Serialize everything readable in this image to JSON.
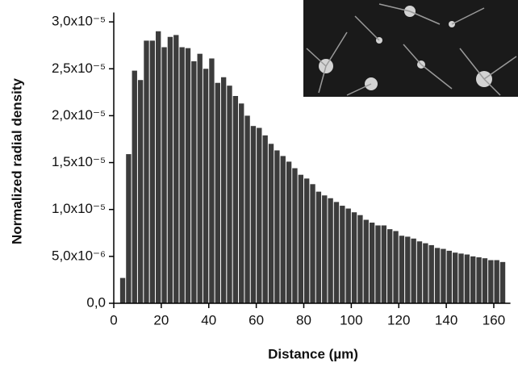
{
  "chart_data": {
    "type": "histogram",
    "xlabel": "Distance (µm)",
    "ylabel": "Normalized radial density",
    "color": "#3c3c3c",
    "bins": [
      2.5,
      5,
      7.5,
      10,
      12.5,
      15,
      17.5,
      20,
      22.5,
      25,
      27.5,
      30,
      32.5,
      35,
      37.5,
      40,
      42.5,
      45,
      47.5,
      50,
      52.5,
      55,
      57.5,
      60,
      62.5,
      65,
      67.5,
      70,
      72.5,
      75,
      77.5,
      80,
      82.5,
      85,
      87.5,
      90,
      92.5,
      95,
      97.5,
      100,
      102.5,
      105,
      107.5,
      110,
      112.5,
      115,
      117.5,
      120,
      122.5,
      125,
      127.5,
      130,
      132.5,
      135,
      137.5,
      140,
      142.5,
      145,
      147.5,
      150,
      152.5,
      155,
      157.5,
      160,
      162.5,
      165
    ],
    "values": [
      2.7e-06,
      1.59e-05,
      2.48e-05,
      2.38e-05,
      2.8e-05,
      2.8e-05,
      2.9e-05,
      2.73e-05,
      2.84e-05,
      2.86e-05,
      2.73e-05,
      2.72e-05,
      2.58e-05,
      2.66e-05,
      2.5e-05,
      2.61e-05,
      2.35e-05,
      2.41e-05,
      2.32e-05,
      2.21e-05,
      2.13e-05,
      2e-05,
      1.89e-05,
      1.87e-05,
      1.79e-05,
      1.7e-05,
      1.63e-05,
      1.57e-05,
      1.51e-05,
      1.44e-05,
      1.37e-05,
      1.33e-05,
      1.27e-05,
      1.19e-05,
      1.15e-05,
      1.12e-05,
      1.08e-05,
      1.04e-05,
      1.01e-05,
      9.7e-06,
      9.4e-06,
      8.9e-06,
      8.6e-06,
      8.3e-06,
      8.3e-06,
      7.9e-06,
      7.7e-06,
      7.2e-06,
      7.1e-06,
      6.9e-06,
      6.6e-06,
      6.4e-06,
      6.2e-06,
      5.9e-06,
      5.8e-06,
      5.6e-06,
      5.4e-06,
      5.3e-06,
      5.2e-06,
      5e-06,
      4.9e-06,
      4.8e-06,
      4.6e-06,
      4.6e-06,
      4.4e-06
    ],
    "xlim": [
      0,
      167
    ],
    "xticks": [
      0,
      20,
      40,
      60,
      80,
      100,
      120,
      140,
      160
    ],
    "ylim": [
      0,
      3.1e-05
    ],
    "yticks": [
      {
        "value": 0,
        "label": "0,0"
      },
      {
        "value": 5e-06,
        "label": "5,0x10⁻⁶"
      },
      {
        "value": 1e-05,
        "label": "1,0x10⁻⁵"
      },
      {
        "value": 1.5e-05,
        "label": "1,5x10⁻⁵"
      },
      {
        "value": 2e-05,
        "label": "2,0x10⁻⁵"
      },
      {
        "value": 2.5e-05,
        "label": "2,5x10⁻⁵"
      },
      {
        "value": 3e-05,
        "label": "3,0x10⁻⁵"
      }
    ]
  }
}
